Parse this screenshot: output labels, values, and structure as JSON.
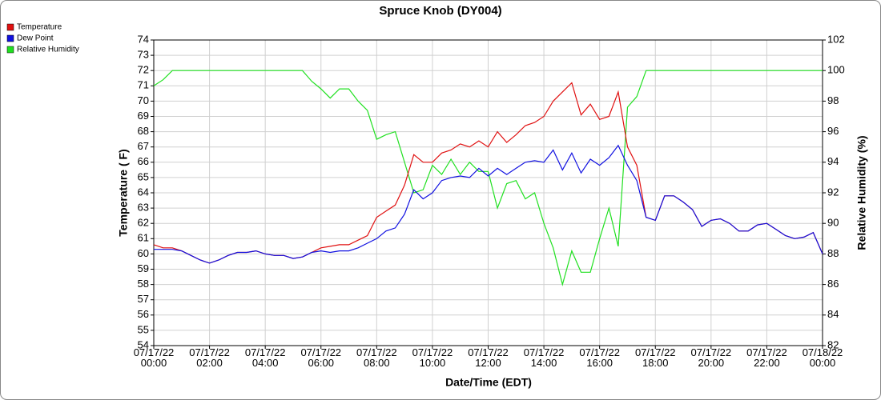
{
  "chart_data": {
    "type": "line",
    "title": "Spruce Knob (DY004)",
    "xlabel": "Date/Time (EDT)",
    "ylabel": "Temperature ( F)",
    "y2label": "Relative Humidity (%)",
    "x": [
      "07/17/22 00:00",
      "07/17/22 00:20",
      "07/17/22 00:40",
      "07/17/22 01:00",
      "07/17/22 01:20",
      "07/17/22 01:40",
      "07/17/22 02:00",
      "07/17/22 02:20",
      "07/17/22 02:40",
      "07/17/22 03:00",
      "07/17/22 03:20",
      "07/17/22 03:40",
      "07/17/22 04:00",
      "07/17/22 04:20",
      "07/17/22 04:40",
      "07/17/22 05:00",
      "07/17/22 05:20",
      "07/17/22 05:40",
      "07/17/22 06:00",
      "07/17/22 06:20",
      "07/17/22 06:40",
      "07/17/22 07:00",
      "07/17/22 07:20",
      "07/17/22 07:40",
      "07/17/22 08:00",
      "07/17/22 08:20",
      "07/17/22 08:40",
      "07/17/22 09:00",
      "07/17/22 09:20",
      "07/17/22 09:40",
      "07/17/22 10:00",
      "07/17/22 10:20",
      "07/17/22 10:40",
      "07/17/22 11:00",
      "07/17/22 11:20",
      "07/17/22 11:40",
      "07/17/22 12:00",
      "07/17/22 12:20",
      "07/17/22 12:40",
      "07/17/22 13:00",
      "07/17/22 13:20",
      "07/17/22 13:40",
      "07/17/22 14:00",
      "07/17/22 14:20",
      "07/17/22 14:40",
      "07/17/22 15:00",
      "07/17/22 15:20",
      "07/17/22 15:40",
      "07/17/22 16:00",
      "07/17/22 16:20",
      "07/17/22 16:40",
      "07/17/22 17:00",
      "07/17/22 17:20",
      "07/17/22 17:40",
      "07/17/22 18:00",
      "07/17/22 18:20",
      "07/17/22 18:40",
      "07/17/22 19:00",
      "07/17/22 19:20",
      "07/17/22 19:40",
      "07/17/22 20:00",
      "07/17/22 20:20",
      "07/17/22 20:40",
      "07/17/22 21:00",
      "07/17/22 21:20",
      "07/17/22 21:40",
      "07/17/22 22:00",
      "07/17/22 22:20",
      "07/17/22 22:40",
      "07/17/22 23:00",
      "07/17/22 23:20",
      "07/17/22 23:40",
      "07/18/22 00:00"
    ],
    "series": [
      {
        "name": "Temperature",
        "color": "#e01010",
        "values": [
          60.6,
          60.4,
          60.4,
          60.2,
          59.9,
          59.6,
          59.4,
          59.6,
          59.9,
          60.1,
          60.1,
          60.2,
          60.0,
          59.9,
          59.9,
          59.7,
          59.8,
          60.1,
          60.4,
          60.5,
          60.6,
          60.6,
          60.9,
          61.2,
          62.4,
          62.8,
          63.2,
          64.5,
          66.5,
          66.0,
          66.0,
          66.6,
          66.8,
          67.2,
          67.0,
          67.4,
          67.0,
          68.0,
          67.3,
          67.8,
          68.4,
          68.6,
          69.0,
          70.0,
          70.6,
          71.2,
          69.1,
          69.8,
          68.8,
          69.0,
          70.6,
          67.0,
          65.8,
          62.4,
          62.2,
          63.8,
          63.8,
          63.4,
          62.9,
          61.8,
          62.2,
          62.3,
          62.0,
          61.5,
          61.5,
          61.9,
          62.0,
          61.6,
          61.2,
          61.0,
          61.1,
          61.4,
          60.0
        ]
      },
      {
        "name": "Dew Point",
        "color": "#1010e0",
        "values": [
          60.3,
          60.3,
          60.3,
          60.2,
          59.9,
          59.6,
          59.4,
          59.6,
          59.9,
          60.1,
          60.1,
          60.2,
          60.0,
          59.9,
          59.9,
          59.7,
          59.8,
          60.1,
          60.2,
          60.1,
          60.2,
          60.2,
          60.4,
          60.7,
          61.0,
          61.5,
          61.7,
          62.6,
          64.2,
          63.6,
          64.0,
          64.8,
          65.0,
          65.1,
          65.0,
          65.6,
          65.1,
          65.6,
          65.2,
          65.6,
          66.0,
          66.1,
          66.0,
          66.8,
          65.5,
          66.6,
          65.3,
          66.2,
          65.8,
          66.3,
          67.1,
          65.8,
          64.8,
          62.4,
          62.2,
          63.8,
          63.8,
          63.4,
          62.9,
          61.8,
          62.2,
          62.3,
          62.0,
          61.5,
          61.5,
          61.9,
          62.0,
          61.6,
          61.2,
          61.0,
          61.1,
          61.4,
          60.0
        ]
      },
      {
        "name": "Relative Humidity",
        "color": "#20e020",
        "axis": "y2",
        "values": [
          99.0,
          99.4,
          100,
          100,
          100,
          100,
          100,
          100,
          100,
          100,
          100,
          100,
          100,
          100,
          100,
          100,
          100,
          99.3,
          98.8,
          98.2,
          98.8,
          98.8,
          98.0,
          97.4,
          95.5,
          95.8,
          96.0,
          94.0,
          92.0,
          92.2,
          93.8,
          93.2,
          94.2,
          93.2,
          94.0,
          93.4,
          93.4,
          91.0,
          92.6,
          92.8,
          91.6,
          92.0,
          90.0,
          88.4,
          86.0,
          88.2,
          86.8,
          86.8,
          89.0,
          91.0,
          88.5,
          97.6,
          98.3,
          100,
          100,
          100,
          100,
          100,
          100,
          100,
          100,
          100,
          100,
          100,
          100,
          100,
          100,
          100,
          100,
          100,
          100,
          100,
          100
        ]
      }
    ],
    "xlim": [
      "07/17/22 00:00",
      "07/18/22 00:00"
    ],
    "xticks": [
      "07/17/22 00:00",
      "07/17/22 02:00",
      "07/17/22 04:00",
      "07/17/22 06:00",
      "07/17/22 08:00",
      "07/17/22 10:00",
      "07/17/22 12:00",
      "07/17/22 14:00",
      "07/17/22 16:00",
      "07/17/22 18:00",
      "07/17/22 20:00",
      "07/17/22 22:00",
      "07/18/22 00:00"
    ],
    "ylim": [
      54,
      74
    ],
    "yticks": [
      54,
      55,
      56,
      57,
      58,
      59,
      60,
      61,
      62,
      63,
      64,
      65,
      66,
      67,
      68,
      69,
      70,
      71,
      72,
      73,
      74
    ],
    "y2lim": [
      82,
      102
    ],
    "y2ticks": [
      82,
      84,
      86,
      88,
      90,
      92,
      94,
      96,
      98,
      100,
      102
    ],
    "grid": true,
    "legend": "top-left"
  }
}
